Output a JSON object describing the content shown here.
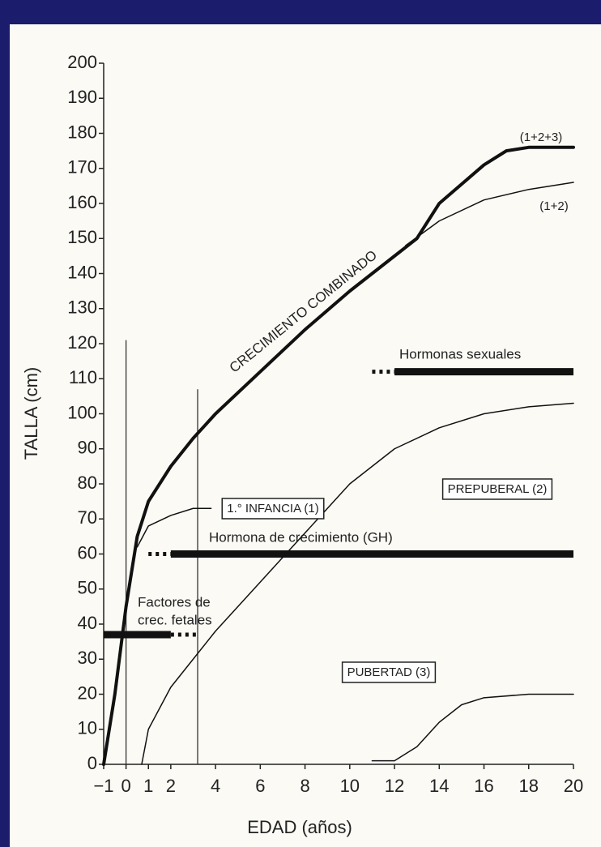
{
  "chart_data": {
    "type": "line",
    "xlabel": "EDAD (años)",
    "ylabel": "TALLA (cm)",
    "xlim": [
      -1,
      20
    ],
    "ylim": [
      0,
      200
    ],
    "xticks": [
      {
        "value": -1,
        "label": "−1"
      },
      0,
      1,
      2,
      4,
      6,
      8,
      10,
      12,
      14,
      16,
      18,
      20
    ],
    "yticks": [
      0,
      10,
      20,
      30,
      40,
      50,
      60,
      70,
      80,
      90,
      100,
      110,
      120,
      130,
      140,
      150,
      160,
      170,
      180,
      190,
      200
    ],
    "annotation": "CRECIMIENTO COMBINADO",
    "series": [
      {
        "name": "(1+2+3)",
        "color": "#111111",
        "width": 4,
        "x": [
          -1,
          -0.5,
          0,
          0.5,
          1,
          2,
          3,
          4,
          6,
          8,
          10,
          12,
          13,
          14,
          16,
          17,
          18,
          20
        ],
        "values": [
          0,
          20,
          45,
          65,
          75,
          85,
          93,
          100,
          112,
          124,
          135,
          145,
          150,
          160,
          171,
          175,
          176,
          176
        ]
      },
      {
        "name": "(1+2)",
        "color": "#111111",
        "width": 1.5,
        "x": [
          12.5,
          14,
          16,
          18,
          20
        ],
        "values": [
          148,
          155,
          161,
          164,
          166
        ]
      },
      {
        "name": "1.° INFANCIA (1)",
        "color": "#111111",
        "width": 1.5,
        "x": [
          0.5,
          1,
          2,
          3,
          3.8
        ],
        "values": [
          62,
          68,
          71,
          73,
          73
        ]
      },
      {
        "name": "PREPUBERAL (2)",
        "color": "#111111",
        "width": 1.5,
        "x": [
          0.7,
          1,
          2,
          3,
          4,
          6,
          8,
          10,
          12,
          14,
          16,
          18,
          20
        ],
        "values": [
          0,
          10,
          22,
          30,
          38,
          52,
          66,
          80,
          90,
          96,
          100,
          102,
          103
        ]
      },
      {
        "name": "PUBERTAD (3)",
        "color": "#111111",
        "width": 1.5,
        "x": [
          11,
          12,
          13,
          14,
          15,
          16,
          18,
          20
        ],
        "values": [
          1,
          1,
          5,
          12,
          17,
          19,
          20,
          20
        ]
      }
    ],
    "bars": [
      {
        "name": "Hormonas sexuales",
        "value": 112,
        "x": [
          12,
          20
        ],
        "dotted_x": [
          11,
          12
        ]
      },
      {
        "name": "Hormona de crecimiento (GH)",
        "value": 60,
        "x": [
          2,
          20
        ],
        "dotted_x": [
          1,
          2
        ]
      },
      {
        "name": [
          "Factores de",
          "crec. fetales"
        ],
        "value": 37,
        "x": [
          -1,
          2
        ],
        "dotted_x": [
          2,
          3.2
        ]
      }
    ],
    "vlines": [
      {
        "x": 0,
        "top": 121
      },
      {
        "x": 3.2,
        "top": 107
      }
    ]
  }
}
